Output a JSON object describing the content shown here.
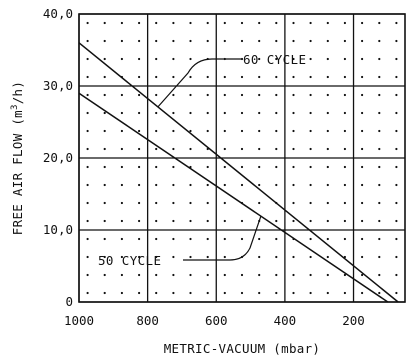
{
  "chart_data": {
    "type": "line",
    "xlabel": "METRIC-VACUUM (mbar)",
    "ylabel_parts": [
      "FREE AIR FLOW (m",
      "3",
      "/h)"
    ],
    "xlim": [
      1000,
      50
    ],
    "ylim": [
      0,
      40
    ],
    "x_ticks": [
      1000,
      800,
      600,
      400,
      200
    ],
    "x_tick_labels": [
      "1000",
      "800",
      "600",
      "400",
      "200"
    ],
    "y_ticks": [
      0,
      10,
      20,
      30,
      40
    ],
    "y_tick_labels": [
      "0",
      "10,0",
      "20,0",
      "30,0",
      "40,0"
    ],
    "grid": true,
    "dot_pattern": true,
    "series": [
      {
        "annotation": "60 CYCLE",
        "points": [
          [
            1000,
            36.0
          ],
          [
            70,
            0
          ]
        ]
      },
      {
        "annotation": "50 CYCLE",
        "points": [
          [
            1000,
            29.0
          ],
          [
            100,
            0
          ]
        ]
      }
    ]
  }
}
